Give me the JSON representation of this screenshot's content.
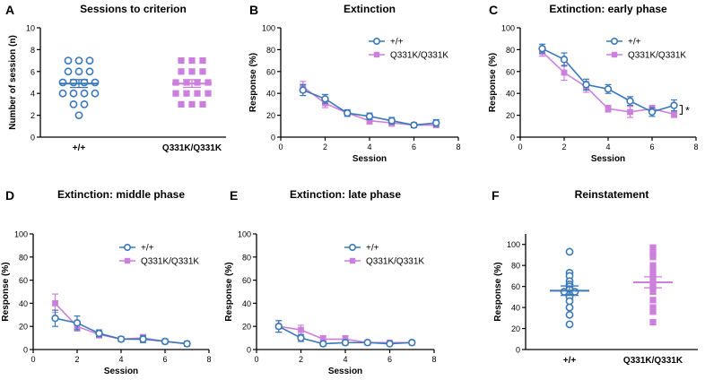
{
  "colors": {
    "wt": "#3a78b8",
    "mut": "#cc7fdc",
    "axis": "#000000"
  },
  "chart_data": [
    {
      "panel": "A",
      "type": "scatter",
      "title": "Sessions to criterion",
      "xlabel": "",
      "ylabel": "Number of session (n)",
      "ylim": [
        0,
        10
      ],
      "yticks": [
        0,
        2,
        4,
        6,
        8,
        10
      ],
      "categories": [
        "+/+",
        "Q331K/Q331K"
      ],
      "series": [
        {
          "name": "+/+",
          "marker": "circle",
          "values": [
            2,
            3,
            3,
            4,
            4,
            4,
            4,
            5,
            5,
            5,
            5,
            6,
            6,
            6,
            7,
            7,
            7
          ],
          "mean": 4.9,
          "sem": 0.36
        },
        {
          "name": "Q331K/Q331K",
          "marker": "square",
          "values": [
            3,
            3,
            3,
            4,
            4,
            4,
            4,
            5,
            5,
            5,
            5,
            6,
            6,
            6,
            7,
            7,
            7
          ],
          "mean": 4.9,
          "sem": 0.35
        }
      ]
    },
    {
      "panel": "B",
      "type": "line",
      "title": "Extinction",
      "xlabel": "Session",
      "ylabel": "Response (%)",
      "xlim": [
        0,
        8
      ],
      "xticks": [
        0,
        2,
        4,
        6,
        8
      ],
      "ylim": [
        0,
        100
      ],
      "yticks": [
        0,
        20,
        40,
        60,
        80,
        100
      ],
      "legend": "top-right",
      "x": [
        1,
        2,
        3,
        4,
        5,
        6,
        7
      ],
      "series": [
        {
          "name": "+/+",
          "marker": "circle",
          "values": [
            43,
            35,
            22,
            19,
            15,
            11,
            13
          ],
          "sem": [
            5,
            4,
            3,
            3,
            3,
            2,
            3
          ]
        },
        {
          "name": "Q331K/Q331K",
          "marker": "square",
          "values": [
            46,
            31,
            22,
            15,
            13,
            11,
            11
          ],
          "sem": [
            5,
            4,
            3,
            3,
            3,
            2,
            2
          ]
        }
      ]
    },
    {
      "panel": "C",
      "type": "line",
      "title": "Extinction: early phase",
      "xlabel": "Session",
      "ylabel": "Response (%)",
      "xlim": [
        0,
        8
      ],
      "xticks": [
        0,
        2,
        4,
        6,
        8
      ],
      "ylim": [
        0,
        100
      ],
      "yticks": [
        0,
        20,
        40,
        60,
        80,
        100
      ],
      "legend": "top-right",
      "x": [
        1,
        2,
        3,
        4,
        5,
        6,
        7
      ],
      "annotation": "*",
      "series": [
        {
          "name": "+/+",
          "marker": "circle",
          "values": [
            81,
            71,
            48,
            44,
            33,
            23,
            29
          ],
          "sem": [
            4,
            6,
            5,
            4,
            4,
            4,
            5
          ]
        },
        {
          "name": "Q331K/Q331K",
          "marker": "square",
          "values": [
            78,
            59,
            46,
            26,
            23,
            26,
            21
          ],
          "sem": [
            4,
            7,
            5,
            3,
            5,
            3,
            3
          ]
        }
      ]
    },
    {
      "panel": "D",
      "type": "line",
      "title": "Extinction: middle phase",
      "xlabel": "Session",
      "ylabel": "Response (%)",
      "xlim": [
        0,
        8
      ],
      "xticks": [
        0,
        2,
        4,
        6,
        8
      ],
      "ylim": [
        0,
        100
      ],
      "yticks": [
        0,
        20,
        40,
        60,
        80,
        100
      ],
      "legend": "top-right",
      "x": [
        1,
        2,
        3,
        4,
        5,
        6,
        7
      ],
      "series": [
        {
          "name": "+/+",
          "marker": "circle",
          "values": [
            27,
            23,
            14,
            9,
            9,
            7,
            5
          ],
          "sem": [
            7,
            6,
            3,
            2,
            3,
            2,
            2
          ]
        },
        {
          "name": "Q331K/Q331K",
          "marker": "square",
          "values": [
            40,
            20,
            13,
            9,
            10,
            7,
            5
          ],
          "sem": [
            8,
            4,
            3,
            2,
            3,
            2,
            2
          ]
        }
      ]
    },
    {
      "panel": "E",
      "type": "line",
      "title": "Extinction: late phase",
      "xlabel": "Session",
      "ylabel": "Response (%)",
      "xlim": [
        0,
        8
      ],
      "xticks": [
        0,
        2,
        4,
        6,
        8
      ],
      "ylim": [
        0,
        100
      ],
      "yticks": [
        0,
        20,
        40,
        60,
        80,
        100
      ],
      "legend": "top-right",
      "x": [
        1,
        2,
        3,
        4,
        5,
        6,
        7
      ],
      "series": [
        {
          "name": "+/+",
          "marker": "circle",
          "values": [
            20,
            10,
            5,
            6,
            6,
            5,
            6
          ],
          "sem": [
            5,
            3,
            2,
            2,
            1,
            1,
            1
          ]
        },
        {
          "name": "Q331K/Q331K",
          "marker": "square",
          "values": [
            20,
            17,
            9,
            9,
            6,
            6,
            6
          ],
          "sem": [
            5,
            4,
            3,
            3,
            1,
            1,
            1
          ]
        }
      ]
    },
    {
      "panel": "F",
      "type": "scatter",
      "title": "Reinstatement",
      "xlabel": "",
      "ylabel": "Response (%)",
      "ylim": [
        0,
        110
      ],
      "yticks": [
        0,
        20,
        40,
        60,
        80,
        100
      ],
      "categories": [
        "+/+",
        "Q331K/Q331K"
      ],
      "series": [
        {
          "name": "+/+",
          "marker": "circle",
          "values": [
            93,
            73,
            70,
            65,
            62,
            60,
            57,
            55,
            55,
            52,
            50,
            46,
            40,
            33,
            24
          ],
          "mean": 56,
          "sem": 4.5
        },
        {
          "name": "Q331K/Q331K",
          "marker": "square",
          "values": [
            97,
            92,
            88,
            80,
            76,
            72,
            69,
            66,
            63,
            60,
            55,
            47,
            40,
            36,
            26
          ],
          "mean": 64,
          "sem": 5.2
        }
      ]
    }
  ]
}
